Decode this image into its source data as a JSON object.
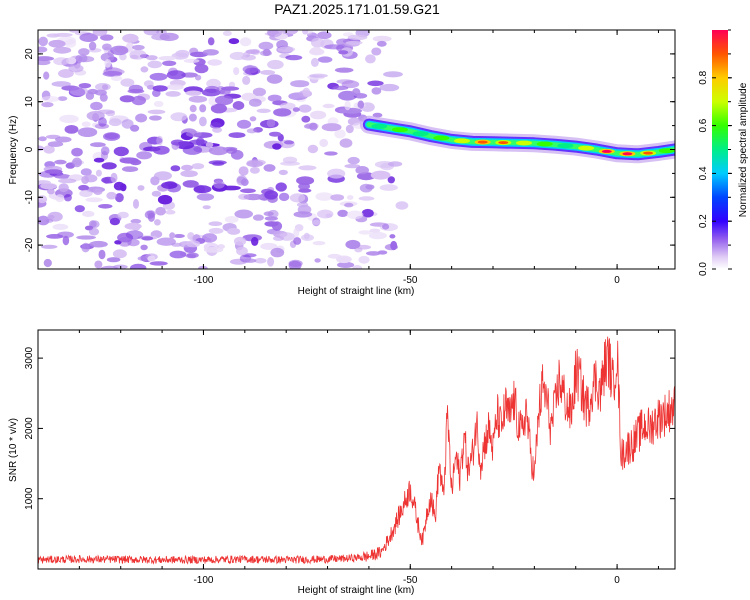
{
  "title": "PAZ1.2025.171.01.59.G21",
  "chart_data": [
    {
      "type": "heatmap",
      "xlabel": "Height of straight line (km)",
      "ylabel": "Frequency (Hz)",
      "xlim": [
        -140,
        14
      ],
      "ylim": [
        -25,
        25
      ],
      "xticks": [
        -100,
        -50,
        0
      ],
      "yticks": [
        -20,
        -10,
        0,
        10,
        20
      ],
      "colorbar": {
        "label": "Normalized spectral amplitude",
        "range": [
          0,
          1
        ],
        "ticks": [
          0.0,
          0.2,
          0.4,
          0.6,
          0.8
        ]
      },
      "ridge": [
        {
          "x": -60,
          "f": 5.2,
          "amp": 0.3
        },
        {
          "x": -55,
          "f": 4.5,
          "amp": 0.75
        },
        {
          "x": -50,
          "f": 3.8,
          "amp": 0.55
        },
        {
          "x": -45,
          "f": 2.8,
          "amp": 0.55
        },
        {
          "x": -40,
          "f": 2.0,
          "amp": 0.65
        },
        {
          "x": -35,
          "f": 1.6,
          "amp": 0.8
        },
        {
          "x": -30,
          "f": 1.5,
          "amp": 0.85
        },
        {
          "x": -25,
          "f": 1.4,
          "amp": 0.7
        },
        {
          "x": -20,
          "f": 1.3,
          "amp": 0.75
        },
        {
          "x": -15,
          "f": 1.0,
          "amp": 0.55
        },
        {
          "x": -10,
          "f": 0.6,
          "amp": 0.6
        },
        {
          "x": -5,
          "f": 0.0,
          "amp": 0.85
        },
        {
          "x": 0,
          "f": -0.8,
          "amp": 0.9
        },
        {
          "x": 5,
          "f": -1.0,
          "amp": 0.85
        },
        {
          "x": 10,
          "f": -0.5,
          "amp": 0.7
        },
        {
          "x": 14,
          "f": 0.0,
          "amp": 0.55
        }
      ]
    },
    {
      "type": "line",
      "xlabel": "Height of straight line (km)",
      "ylabel": "SNR (10 * v/v)",
      "xlim": [
        -140,
        14
      ],
      "ylim": [
        0,
        3400
      ],
      "xticks": [
        -100,
        -50,
        0
      ],
      "yticks": [
        1000,
        2000,
        3000
      ],
      "color": "#ee3333",
      "series": [
        {
          "x": [
            -140,
            -130,
            -120,
            -110,
            -100,
            -90,
            -80,
            -70,
            -65,
            -60,
            -57,
            -55,
            -52,
            -50,
            -49,
            -48,
            -47,
            -46,
            -45,
            -44,
            -43,
            -42,
            -41,
            -40,
            -39,
            -38,
            -37,
            -36,
            -35,
            -34,
            -33,
            -32,
            -31,
            -30,
            -29,
            -28,
            -27,
            -26,
            -25,
            -24,
            -23,
            -22,
            -21,
            -20,
            -19,
            -18,
            -17,
            -16,
            -15,
            -14,
            -13,
            -12,
            -11,
            -10,
            -9,
            -8,
            -7,
            -6,
            -5,
            -4,
            -3,
            -2,
            -1,
            0,
            1,
            2,
            3,
            4,
            5,
            6,
            7,
            8,
            9,
            10,
            11,
            12,
            13,
            14
          ],
          "y": [
            130,
            140,
            135,
            130,
            130,
            140,
            130,
            140,
            150,
            180,
            240,
            450,
            850,
            1150,
            900,
            600,
            400,
            800,
            1050,
            700,
            1500,
            1000,
            2200,
            1100,
            1600,
            1300,
            1900,
            1400,
            1600,
            2100,
            1500,
            1800,
            2000,
            1700,
            2200,
            2000,
            2300,
            2150,
            2400,
            2100,
            1900,
            2300,
            1700,
            1300,
            2200,
            2600,
            2400,
            2000,
            2300,
            2700,
            2500,
            2300,
            2200,
            2800,
            2700,
            2400,
            2300,
            2600,
            2700,
            2500,
            2900,
            3000,
            2600,
            3100,
            1600,
            1700,
            1750,
            1800,
            1900,
            2000,
            2050,
            2000,
            2100,
            2150,
            2200,
            2200,
            2300,
            2300
          ]
        }
      ]
    }
  ]
}
